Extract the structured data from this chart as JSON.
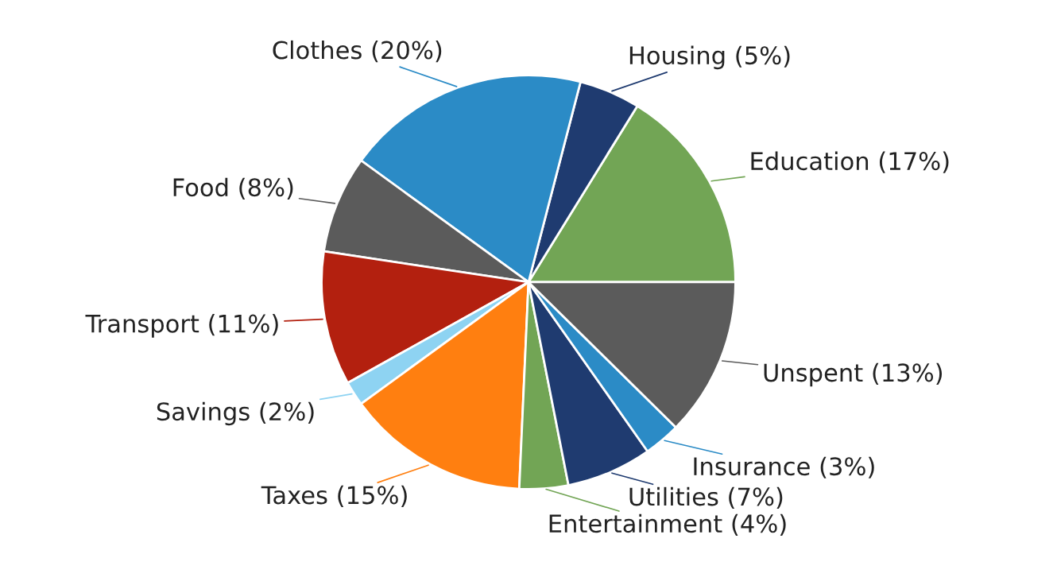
{
  "chart_data": {
    "type": "pie",
    "categories": [
      "Education",
      "Housing",
      "Clothes",
      "Food",
      "Transport",
      "Savings",
      "Taxes",
      "Entertainment",
      "Utilities",
      "Insurance",
      "Unspent"
    ],
    "values": [
      17,
      5,
      20,
      8,
      11,
      2,
      15,
      4,
      7,
      3,
      13
    ],
    "value_labels": [
      "(17%)",
      "(5%)",
      "(20%)",
      "(8%)",
      "(11%)",
      "(2%)",
      "(15%)",
      "(4%)",
      "(7%)",
      "(3%)",
      "(13%)"
    ],
    "colors": [
      "#72a555",
      "#1f3b70",
      "#2b8bc6",
      "#5b5b5b",
      "#b3200f",
      "#8ed3f2",
      "#ff7f10",
      "#72a555",
      "#1f3b70",
      "#2b8bc6",
      "#5b5b5b"
    ],
    "legend": false
  }
}
